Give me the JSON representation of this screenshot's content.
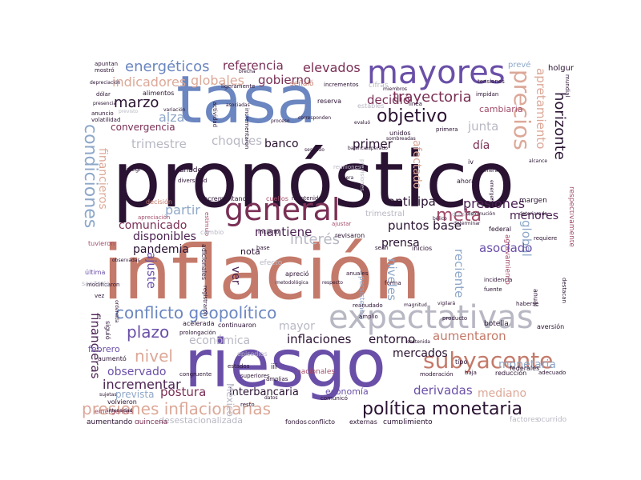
{
  "palette": {
    "dark": "#2a1232",
    "plum": "#4b2252",
    "wine": "#7a2f55",
    "rose": "#a24d6a",
    "terracotta": "#c47a6a",
    "peach": "#dca898",
    "blue": "#6b86c0",
    "violet": "#6a4fa8",
    "steel": "#8ea7c8",
    "gray": "#b8b8c4"
  },
  "words": [
    {
      "t": "pronóstico",
      "c": "dark"
    },
    {
      "t": "inflación",
      "c": "terracotta"
    },
    {
      "t": "riesgo",
      "c": "violet"
    },
    {
      "t": "tasa",
      "c": "blue"
    },
    {
      "t": "mayores",
      "c": "violet"
    },
    {
      "t": "general",
      "c": "wine"
    },
    {
      "t": "expectativas",
      "c": "gray"
    },
    {
      "t": "presiones inflacionarias",
      "c": "peach"
    },
    {
      "t": "política monetaria",
      "c": "dark"
    },
    {
      "t": "conflicto geopolítico",
      "c": "blue"
    },
    {
      "t": "subyacente",
      "c": "terracotta"
    },
    {
      "t": "precios",
      "c": "peach"
    },
    {
      "t": "condiciones",
      "c": "steel"
    },
    {
      "t": "objetivo",
      "c": "dark"
    },
    {
      "t": "trayectoria",
      "c": "wine"
    },
    {
      "t": "meta",
      "c": "rose"
    },
    {
      "t": "presiones",
      "c": "plum"
    },
    {
      "t": "referencia",
      "c": "wine"
    },
    {
      "t": "energéticos",
      "c": "blue"
    },
    {
      "t": "elevados",
      "c": "wine"
    },
    {
      "t": "indicadores",
      "c": "peach"
    },
    {
      "t": "globales",
      "c": "peach"
    },
    {
      "t": "gobierno",
      "c": "wine"
    },
    {
      "t": "marzo",
      "c": "dark"
    },
    {
      "t": "alza",
      "c": "steel"
    },
    {
      "t": "decidió",
      "c": "wine"
    },
    {
      "t": "junta",
      "c": "gray"
    },
    {
      "t": "horizonte",
      "c": "dark"
    },
    {
      "t": "apretamiento",
      "c": "peach"
    },
    {
      "t": "convergencia",
      "c": "wine"
    },
    {
      "t": "trimestre",
      "c": "gray"
    },
    {
      "t": "choques",
      "c": "gray"
    },
    {
      "t": "primer",
      "c": "dark"
    },
    {
      "t": "banco",
      "c": "dark"
    },
    {
      "t": "afectado",
      "c": "peach"
    },
    {
      "t": "día",
      "c": "wine"
    },
    {
      "t": "financieros",
      "c": "peach"
    },
    {
      "t": "anticipa",
      "c": "dark"
    },
    {
      "t": "partir",
      "c": "steel"
    },
    {
      "t": "comunicado",
      "c": "wine"
    },
    {
      "t": "disponibles",
      "c": "plum"
    },
    {
      "t": "pandemia",
      "c": "dark"
    },
    {
      "t": "puntos base",
      "c": "dark"
    },
    {
      "t": "mantiene",
      "c": "plum"
    },
    {
      "t": "interés",
      "c": "gray"
    },
    {
      "t": "global",
      "c": "steel"
    },
    {
      "t": "menores",
      "c": "plum"
    },
    {
      "t": "asociado",
      "c": "violet"
    },
    {
      "t": "prensa",
      "c": "dark"
    },
    {
      "t": "reciente",
      "c": "steel"
    },
    {
      "t": "niveles",
      "c": "steel"
    },
    {
      "t": "ajuste",
      "c": "violet"
    },
    {
      "t": "ver",
      "c": "plum"
    },
    {
      "t": "nota",
      "c": "dark"
    },
    {
      "t": "plazo",
      "c": "violet"
    },
    {
      "t": "mayor",
      "c": "gray"
    },
    {
      "t": "inflaciones",
      "c": "dark"
    },
    {
      "t": "entorno",
      "c": "dark"
    },
    {
      "t": "aumentaron",
      "c": "terracotta"
    },
    {
      "t": "económica",
      "c": "gray"
    },
    {
      "t": "nivel",
      "c": "peach"
    },
    {
      "t": "mercados",
      "c": "dark"
    },
    {
      "t": "monetaria",
      "c": "steel"
    },
    {
      "t": "financieras",
      "c": "plum"
    },
    {
      "t": "observado",
      "c": "violet"
    },
    {
      "t": "incrementar",
      "c": "plum"
    },
    {
      "t": "postura",
      "c": "wine"
    },
    {
      "t": "interbancaria",
      "c": "dark"
    },
    {
      "t": "derivadas",
      "c": "violet"
    },
    {
      "t": "mediano",
      "c": "peach"
    },
    {
      "t": "México",
      "c": "gray"
    },
    {
      "t": "febrero",
      "c": "violet"
    },
    {
      "t": "prevista",
      "c": "steel"
    },
    {
      "t": "desestacionalizada",
      "c": "gray"
    },
    {
      "t": "economía",
      "c": "violet"
    },
    {
      "t": "aumentando",
      "c": "dark"
    },
    {
      "t": "quincena",
      "c": "wine"
    },
    {
      "t": "fondos",
      "c": "dark"
    },
    {
      "t": "conflicto",
      "c": "dark"
    },
    {
      "t": "externas",
      "c": "dark"
    },
    {
      "t": "cumplimiento",
      "c": "dark"
    },
    {
      "t": "factores",
      "c": "gray"
    },
    {
      "t": "ocurrido",
      "c": "gray"
    },
    {
      "t": "apuntan",
      "c": "dark"
    },
    {
      "t": "mostró",
      "c": "dark"
    },
    {
      "t": "brecha",
      "c": "dark"
    },
    {
      "t": "señaló",
      "c": "terracotta"
    },
    {
      "t": "incrementos",
      "c": "dark"
    },
    {
      "t": "cifras",
      "c": "gray"
    },
    {
      "t": "holgura",
      "c": "dark"
    },
    {
      "t": "tensiones",
      "c": "dark"
    },
    {
      "t": "prevé",
      "c": "steel"
    },
    {
      "t": "mundial",
      "c": "dark"
    },
    {
      "t": "alimentos",
      "c": "dark"
    },
    {
      "t": "cambiaria",
      "c": "rose"
    },
    {
      "t": "reserva",
      "c": "dark"
    },
    {
      "t": "proceso",
      "c": "dark"
    },
    {
      "t": "línea",
      "c": "dark"
    },
    {
      "t": "añaden",
      "c": "dark"
    },
    {
      "t": "diversidad",
      "c": "dark"
    },
    {
      "t": "reuniones",
      "c": "gray"
    },
    {
      "t": "opera",
      "c": "dark"
    },
    {
      "t": "margen",
      "c": "dark"
    },
    {
      "t": "respectivamente",
      "c": "rose"
    },
    {
      "t": "decisión",
      "c": "terracotta"
    },
    {
      "t": "incrementando",
      "c": "dark"
    },
    {
      "t": "cuellos",
      "c": "rose"
    },
    {
      "t": "mantenido",
      "c": "dark"
    },
    {
      "t": "incierto",
      "c": "dark"
    },
    {
      "t": "revisaron",
      "c": "dark"
    },
    {
      "t": "trimestral",
      "c": "gray"
    },
    {
      "t": "sean",
      "c": "dark"
    },
    {
      "t": "inicios",
      "c": "dark"
    },
    {
      "t": "federal",
      "c": "dark"
    },
    {
      "t": "federales",
      "c": "dark"
    },
    {
      "t": "requiere",
      "c": "dark"
    },
    {
      "t": "última",
      "c": "violet"
    },
    {
      "t": "adicionales",
      "c": "dark"
    },
    {
      "t": "base",
      "c": "dark"
    },
    {
      "t": "efecto",
      "c": "gray"
    },
    {
      "t": "apreció",
      "c": "dark"
    },
    {
      "t": "anuales",
      "c": "dark"
    },
    {
      "t": "forma",
      "c": "dark"
    },
    {
      "t": "incidencia",
      "c": "dark"
    },
    {
      "t": "fuente",
      "c": "dark"
    },
    {
      "t": "anual",
      "c": "dark"
    },
    {
      "t": "destacan",
      "c": "dark"
    },
    {
      "t": "haberse",
      "c": "dark"
    },
    {
      "t": "persistencia",
      "c": "steel"
    },
    {
      "t": "agravamiento",
      "c": "rose"
    },
    {
      "t": "reanudado",
      "c": "dark"
    },
    {
      "t": "magnitud",
      "c": "dark"
    },
    {
      "t": "vigilará",
      "c": "dark"
    },
    {
      "t": "acelerada",
      "c": "dark"
    },
    {
      "t": "continuaron",
      "c": "dark"
    },
    {
      "t": "producto",
      "c": "dark"
    },
    {
      "t": "prolongación",
      "c": "dark"
    },
    {
      "t": "botella",
      "c": "dark"
    },
    {
      "t": "aversión",
      "c": "dark"
    },
    {
      "t": "aumentó",
      "c": "dark"
    },
    {
      "t": "siguió",
      "c": "dark"
    },
    {
      "t": "episodios",
      "c": "gray"
    },
    {
      "t": "estados",
      "c": "dark"
    },
    {
      "t": "iii",
      "c": "dark"
    },
    {
      "t": "nacionales",
      "c": "rose"
    },
    {
      "t": "tipo",
      "c": "dark"
    },
    {
      "t": "baja",
      "c": "dark"
    },
    {
      "t": "reducción",
      "c": "dark"
    },
    {
      "t": "adecuado",
      "c": "dark"
    },
    {
      "t": "amplias",
      "c": "dark"
    },
    {
      "t": "superiores",
      "c": "dark"
    },
    {
      "t": "comunicó",
      "c": "dark"
    },
    {
      "t": "moderación",
      "c": "dark"
    },
    {
      "t": "resto",
      "c": "dark"
    },
    {
      "t": "volvieron",
      "c": "dark"
    },
    {
      "t": "emergentes",
      "c": "rose"
    },
    {
      "t": "estimulo",
      "c": "rose"
    },
    {
      "t": "tuvieron",
      "c": "rose"
    },
    {
      "t": "modificaron",
      "c": "dark"
    },
    {
      "t": "vez",
      "c": "dark"
    },
    {
      "t": "ordenada",
      "c": "dark"
    },
    {
      "t": "apreciación",
      "c": "rose"
    },
    {
      "t": "ajustar",
      "c": "rose"
    },
    {
      "t": "amplio",
      "c": "dark"
    },
    {
      "t": "iv",
      "c": "dark"
    },
    {
      "t": "ahora",
      "c": "dark"
    },
    {
      "t": "alcance",
      "c": "dark"
    },
    {
      "t": "miembros",
      "c": "dark"
    },
    {
      "t": "primera",
      "c": "dark"
    },
    {
      "t": "esperado",
      "c": "dark"
    },
    {
      "t": "balance",
      "c": "dark"
    },
    {
      "t": "unidos",
      "c": "dark"
    },
    {
      "t": "sombreadas",
      "c": "dark"
    },
    {
      "t": "previsiones",
      "c": "gray"
    },
    {
      "t": "generado",
      "c": "dark"
    },
    {
      "t": "emergencia",
      "c": "dark"
    },
    {
      "t": "durante",
      "c": "gray"
    },
    {
      "t": "disminución",
      "c": "dark"
    },
    {
      "t": "deteriorado",
      "c": "dark"
    },
    {
      "t": "determinar",
      "c": "dark"
    },
    {
      "t": "bélico",
      "c": "dark"
    },
    {
      "t": "asociadas",
      "c": "dark"
    },
    {
      "t": "estables",
      "c": "gray"
    },
    {
      "t": "inegi",
      "c": "dark"
    },
    {
      "t": "actividad",
      "c": "dark"
    },
    {
      "t": "incrementaron",
      "c": "dark"
    },
    {
      "t": "anuncio",
      "c": "dark"
    },
    {
      "t": "volatilidad",
      "c": "dark"
    },
    {
      "t": "previsto",
      "c": "gray"
    },
    {
      "t": "presencia",
      "c": "dark"
    },
    {
      "t": "depreciación",
      "c": "dark"
    },
    {
      "t": "dólar",
      "c": "dark"
    },
    {
      "t": "variación",
      "c": "dark"
    },
    {
      "t": "impidan",
      "c": "dark"
    },
    {
      "t": "corresponden",
      "c": "dark"
    },
    {
      "t": "sesgado",
      "c": "dark"
    },
    {
      "t": "evaluó",
      "c": "dark"
    },
    {
      "t": "sostenida",
      "c": "dark"
    },
    {
      "t": "congruente",
      "c": "dark"
    },
    {
      "t": "observadas",
      "c": "dark"
    },
    {
      "t": "sanitaria",
      "c": "gray"
    },
    {
      "t": "metodológica",
      "c": "dark"
    },
    {
      "t": "respecto",
      "c": "dark"
    },
    {
      "t": "cambio",
      "c": "gray"
    },
    {
      "t": "datos",
      "c": "dark"
    },
    {
      "t": "registraron",
      "c": "dark"
    },
    {
      "t": "ligeramente",
      "c": "dark"
    },
    {
      "t": "sujetas",
      "c": "dark"
    },
    {
      "t": "intensidad",
      "c": "dark"
    }
  ]
}
